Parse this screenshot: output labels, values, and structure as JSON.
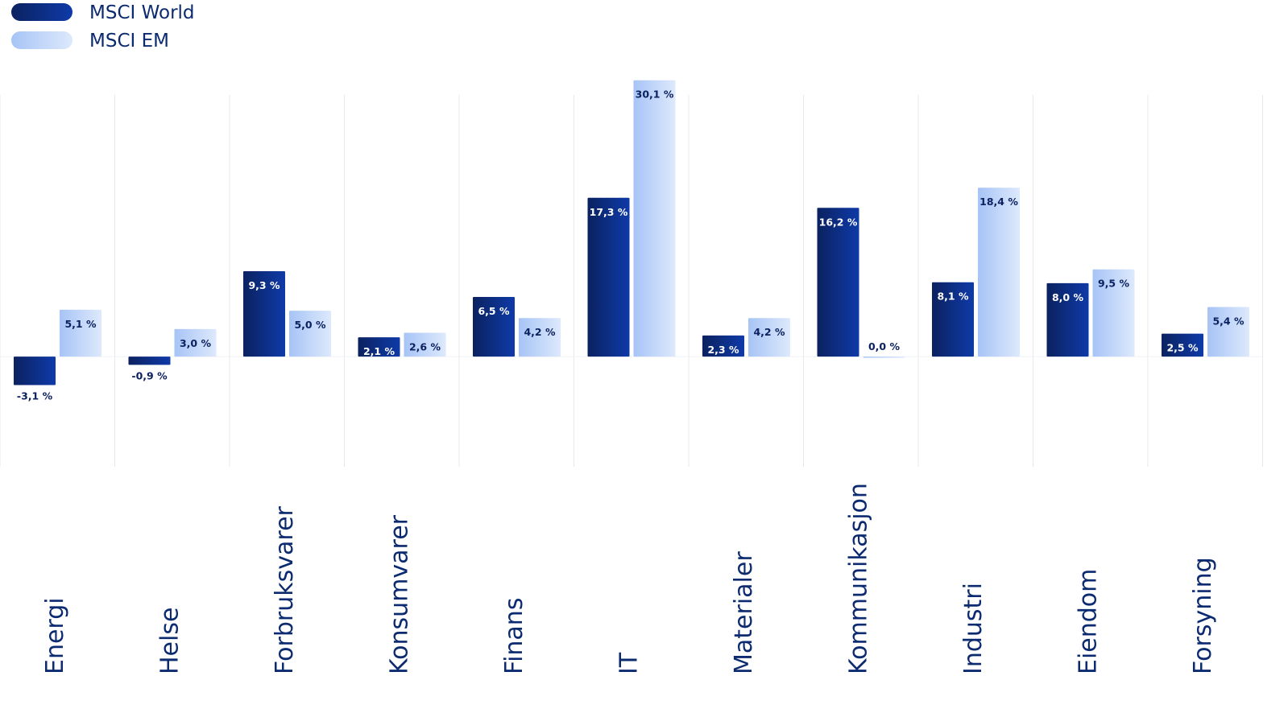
{
  "chart_data": {
    "type": "bar",
    "categories": [
      "Energi",
      "Helse",
      "Forbruksvarer",
      "Konsumvarer",
      "Finans",
      "IT",
      "Materialer",
      "Kommunikasjon",
      "Industri",
      "Eiendom",
      "Forsyning"
    ],
    "series": [
      {
        "name": "MSCI World",
        "values": [
          -3.1,
          -0.9,
          9.3,
          2.1,
          6.5,
          17.3,
          2.3,
          16.2,
          8.1,
          8.0,
          2.5
        ],
        "labels": [
          "-3,1 %",
          "-0,9 %",
          "9,3 %",
          "2,1 %",
          "6,5 %",
          "17,3 %",
          "2,3 %",
          "16,2 %",
          "8,1 %",
          "8,0 %",
          "2,5 %"
        ],
        "color_dark": "#0b2260",
        "color_light": "#0e3aa8"
      },
      {
        "name": "MSCI EM",
        "values": [
          5.1,
          3.0,
          5.0,
          2.6,
          4.2,
          30.1,
          4.2,
          0.0,
          18.4,
          9.5,
          5.4
        ],
        "labels": [
          "5,1 %",
          "3,0 %",
          "5,0 %",
          "2,6 %",
          "4,2 %",
          "30,1 %",
          "4,2 %",
          "0,0 %",
          "18,4 %",
          "9,5 %",
          "5,4 %"
        ],
        "color_dark": "#a7c4f6",
        "color_light": "#dde9fc"
      }
    ],
    "ylim": [
      -12,
      28.5
    ],
    "grid": "vertical",
    "legend": "top-left"
  }
}
